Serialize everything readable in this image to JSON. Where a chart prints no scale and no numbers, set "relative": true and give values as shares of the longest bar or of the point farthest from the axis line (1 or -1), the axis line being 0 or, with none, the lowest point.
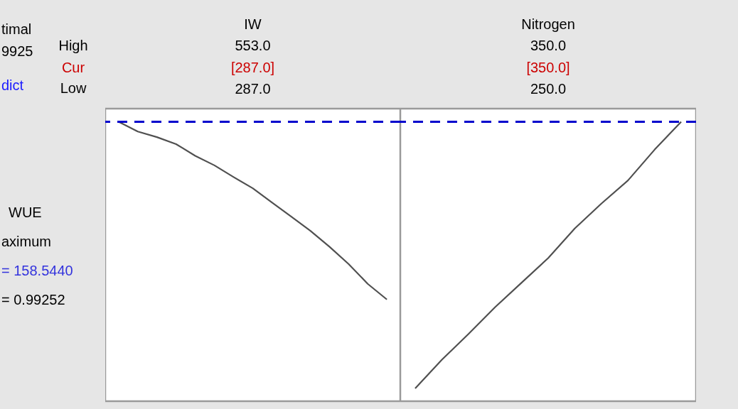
{
  "chart_data": [
    {
      "type": "other",
      "annotations": [
        "timal",
        "High",
        "9925",
        "Cur",
        "dict",
        "Low",
        "WUE",
        "aximum",
        "= 158.5440",
        "= 0.99252"
      ]
    },
    {
      "type": "line",
      "title": "IW",
      "annotations": [
        "553.0",
        "[287.0]",
        "287.0"
      ],
      "relative": true,
      "categories": [
        null,
        null,
        null,
        null,
        null,
        null,
        null,
        null,
        null,
        null,
        null,
        null,
        null,
        null,
        null
      ],
      "series": [
        {
          "color": "#505050",
          "values": [
            1,
            0.965,
            0.945,
            0.92,
            0.878,
            0.844,
            0.802,
            0.762,
            0.711,
            0.661,
            0.61,
            0.553,
            0.491,
            0.42,
            0.364
          ]
        }
      ],
      "ref_lines": [
        {
          "axis": "y",
          "value": 1,
          "color": "#0000cc",
          "line_style": "dashed"
        }
      ]
    },
    {
      "type": "line",
      "title": "Nitrogen",
      "annotations": [
        "350.0",
        "[350.0]",
        "250.0"
      ],
      "relative": true,
      "categories": [
        null,
        null,
        null,
        null,
        null,
        null,
        null,
        null,
        null,
        null,
        null
      ],
      "series": [
        {
          "color": "#505050",
          "values": [
            0.046,
            0.148,
            0.24,
            0.336,
            0.424,
            0.512,
            0.618,
            0.707,
            0.79,
            0.9,
            1
          ]
        }
      ],
      "ref_lines": [
        {
          "axis": "y",
          "value": 1,
          "color": "#0000cc",
          "line_style": "dashed"
        }
      ]
    }
  ]
}
